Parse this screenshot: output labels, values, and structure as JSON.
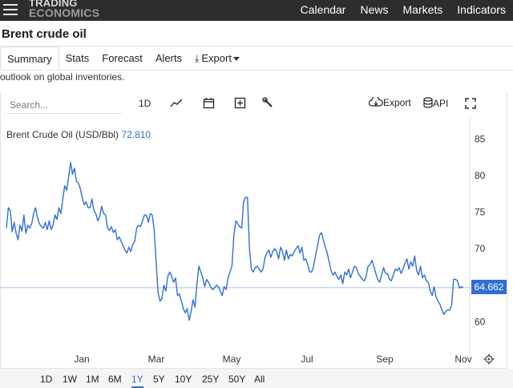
{
  "header": {
    "logo_line1": "TRADING",
    "logo_line2": "ECONOMICS",
    "nav": [
      "Calendar",
      "News",
      "Markets",
      "Indicators"
    ]
  },
  "page": {
    "title": "Brent crude oil",
    "tabs": [
      "Summary",
      "Stats",
      "Forecast",
      "Alerts",
      "Export"
    ],
    "active_tab": "Summary",
    "snippet": "outlook on global inventories."
  },
  "toolbar": {
    "search_placeholder": "Search...",
    "interval": "1D",
    "export_label": "Export",
    "api_label": "API",
    "icons": [
      "line-chart-icon",
      "calendar-icon",
      "add-series-icon",
      "wrench-icon",
      "cloud-download-icon",
      "database-icon",
      "fullscreen-icon"
    ]
  },
  "ranges": {
    "items": [
      "1D",
      "1W",
      "1M",
      "6M",
      "1Y",
      "5Y",
      "10Y",
      "25Y",
      "50Y",
      "All"
    ],
    "active": "1Y"
  },
  "colors": {
    "accent": "#2f6fd6",
    "topbar": "#2d2d2d"
  },
  "chart_data": {
    "type": "line",
    "legend": "Brent Crude Oil (USD/Bbl)",
    "legend_value": "72.810",
    "last_value_label": "64.662",
    "last_value": 64.662,
    "ylim": [
      56.2,
      88
    ],
    "y_ticks": [
      60,
      65,
      70,
      75,
      80,
      85
    ],
    "x_ticks": [
      "Jan",
      "Mar",
      "May",
      "Jul",
      "Sep",
      "Nov"
    ],
    "grid": false,
    "legend_position": "top-left",
    "series": [
      {
        "values": [
          72.8,
          75.6,
          75.2,
          72.3,
          73.6,
          72.1,
          71.2,
          73.2,
          72.4,
          74.6,
          72.1,
          73.2,
          72.8,
          73.4,
          74.8,
          75.6,
          74.2,
          73.4,
          73.0,
          72.8,
          73.6,
          72.6,
          73.8,
          72.6,
          73.2,
          74.6,
          74.0,
          75.6,
          74.8,
          76.8,
          78.6,
          78.0,
          79.8,
          81.8,
          80.2,
          81.0,
          79.2,
          79.0,
          78.2,
          77.0,
          76.0,
          76.4,
          75.6,
          75.6,
          76.8,
          75.2,
          74.8,
          73.8,
          74.4,
          75.8,
          74.8,
          74.6,
          72.8,
          72.5,
          73.0,
          72.2,
          72.6,
          71.2,
          71.6,
          71.0,
          70.4,
          69.8,
          69.4,
          70.2,
          69.6,
          70.6,
          71.0,
          72.8,
          73.2,
          73.0,
          73.8,
          74.6,
          74.6,
          73.6,
          74.8,
          74.6,
          72.6,
          68.2,
          64.0,
          62.8,
          63.2,
          65.0,
          64.2,
          66.2,
          66.8,
          66.2,
          65.4,
          66.0,
          63.6,
          63.8,
          62.8,
          61.8,
          61.2,
          61.8,
          60.2,
          61.4,
          63.0,
          62.0,
          65.2,
          67.6,
          66.8,
          66.0,
          64.8,
          65.8,
          65.4,
          64.8,
          64.4,
          64.6,
          65.0,
          64.8,
          64.2,
          63.6,
          64.8,
          64.4,
          66.0,
          66.8,
          67.6,
          71.8,
          73.8,
          73.4,
          73.0,
          72.8,
          76.4,
          77.0,
          77.0,
          70.0,
          67.2,
          66.8,
          67.4,
          67.6,
          67.2,
          66.8,
          67.2,
          68.8,
          69.4,
          69.8,
          68.8,
          69.6,
          70.0,
          69.6,
          68.6,
          70.2,
          69.6,
          68.4,
          69.8,
          68.6,
          69.2,
          69.0,
          69.6,
          70.0,
          70.4,
          69.4,
          70.2,
          68.4,
          68.6,
          67.8,
          66.8,
          66.8,
          67.6,
          69.0,
          70.4,
          71.8,
          72.2,
          71.2,
          70.2,
          69.4,
          68.2,
          67.0,
          66.4,
          66.8,
          66.2,
          65.8,
          66.4,
          65.2,
          66.8,
          66.4,
          67.2,
          66.0,
          66.8,
          67.6,
          67.4,
          66.6,
          66.2,
          65.8,
          65.6,
          66.2,
          67.6,
          67.8,
          68.4,
          67.6,
          66.6,
          65.8,
          65.4,
          66.4,
          67.4,
          66.6,
          66.6,
          65.8,
          65.6,
          66.4,
          67.2,
          67.0,
          67.4,
          66.6,
          67.2,
          68.0,
          68.6,
          67.2,
          68.2,
          67.6,
          69.0,
          67.0,
          66.4,
          67.6,
          66.0,
          66.4,
          65.6,
          65.4,
          64.2,
          63.6,
          64.8,
          63.4,
          62.8,
          62.4,
          61.6,
          61.0,
          61.4,
          61.6,
          61.6,
          62.2,
          65.8,
          65.8,
          65.6,
          64.6,
          64.8,
          64.7
        ]
      }
    ]
  }
}
